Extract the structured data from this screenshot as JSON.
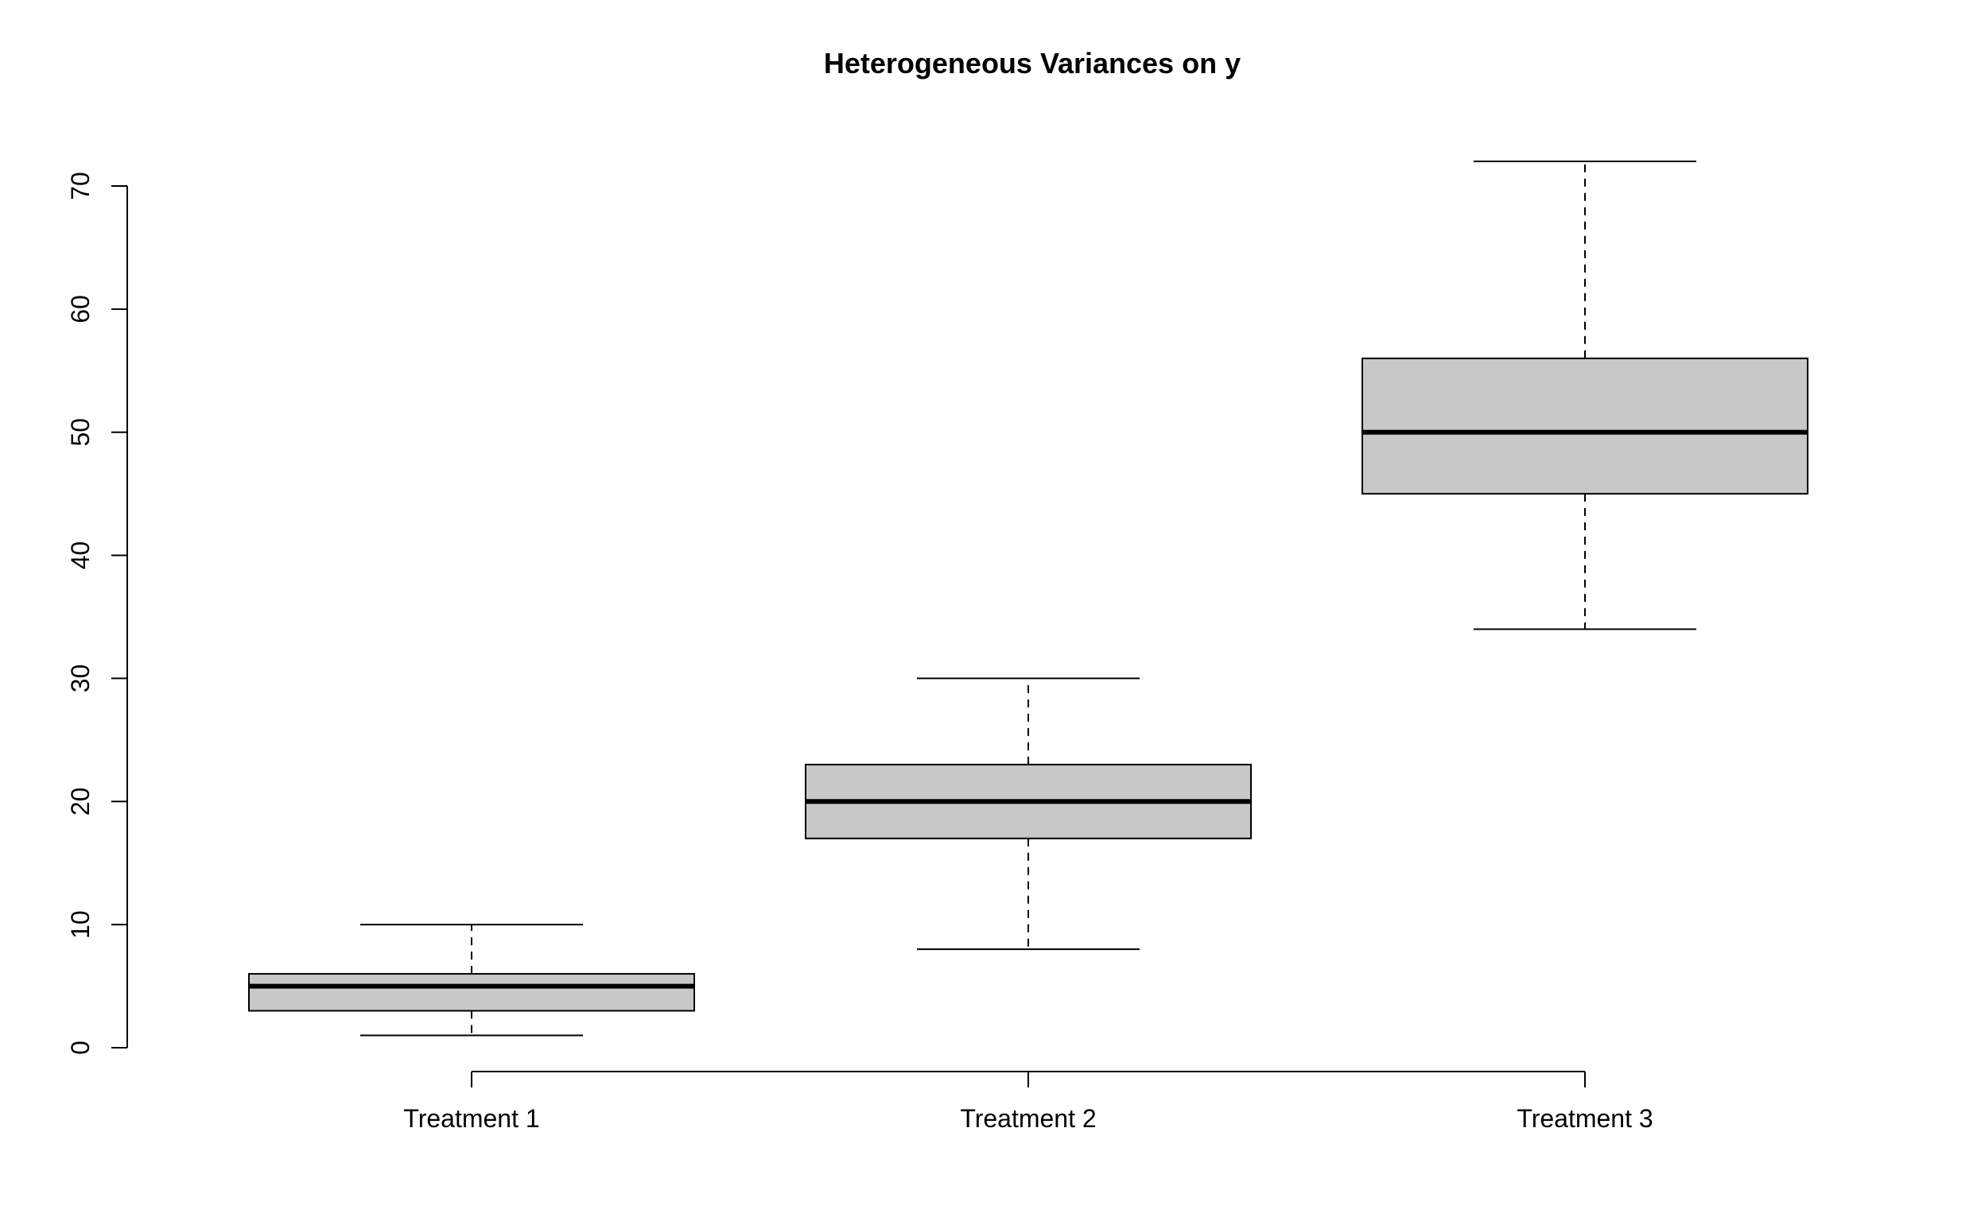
{
  "chart_data": {
    "type": "boxplot",
    "title": "Heterogeneous Variances on y",
    "xlabel": "",
    "ylabel": "",
    "ylim": [
      0,
      72
    ],
    "y_ticks": [
      0,
      10,
      20,
      30,
      40,
      50,
      60,
      70
    ],
    "categories": [
      "Treatment 1",
      "Treatment 2",
      "Treatment 3"
    ],
    "boxes": [
      {
        "category": "Treatment 1",
        "min": 1,
        "q1": 3,
        "median": 5,
        "q3": 6,
        "max": 10
      },
      {
        "category": "Treatment 2",
        "min": 8,
        "q1": 17,
        "median": 20,
        "q3": 23,
        "max": 30
      },
      {
        "category": "Treatment 3",
        "min": 34,
        "q1": 45,
        "median": 50,
        "q3": 56,
        "max": 72
      }
    ],
    "grid": false,
    "legend": "none",
    "colors": {
      "box_fill": "#c8c8c8",
      "line": "#000000"
    }
  }
}
